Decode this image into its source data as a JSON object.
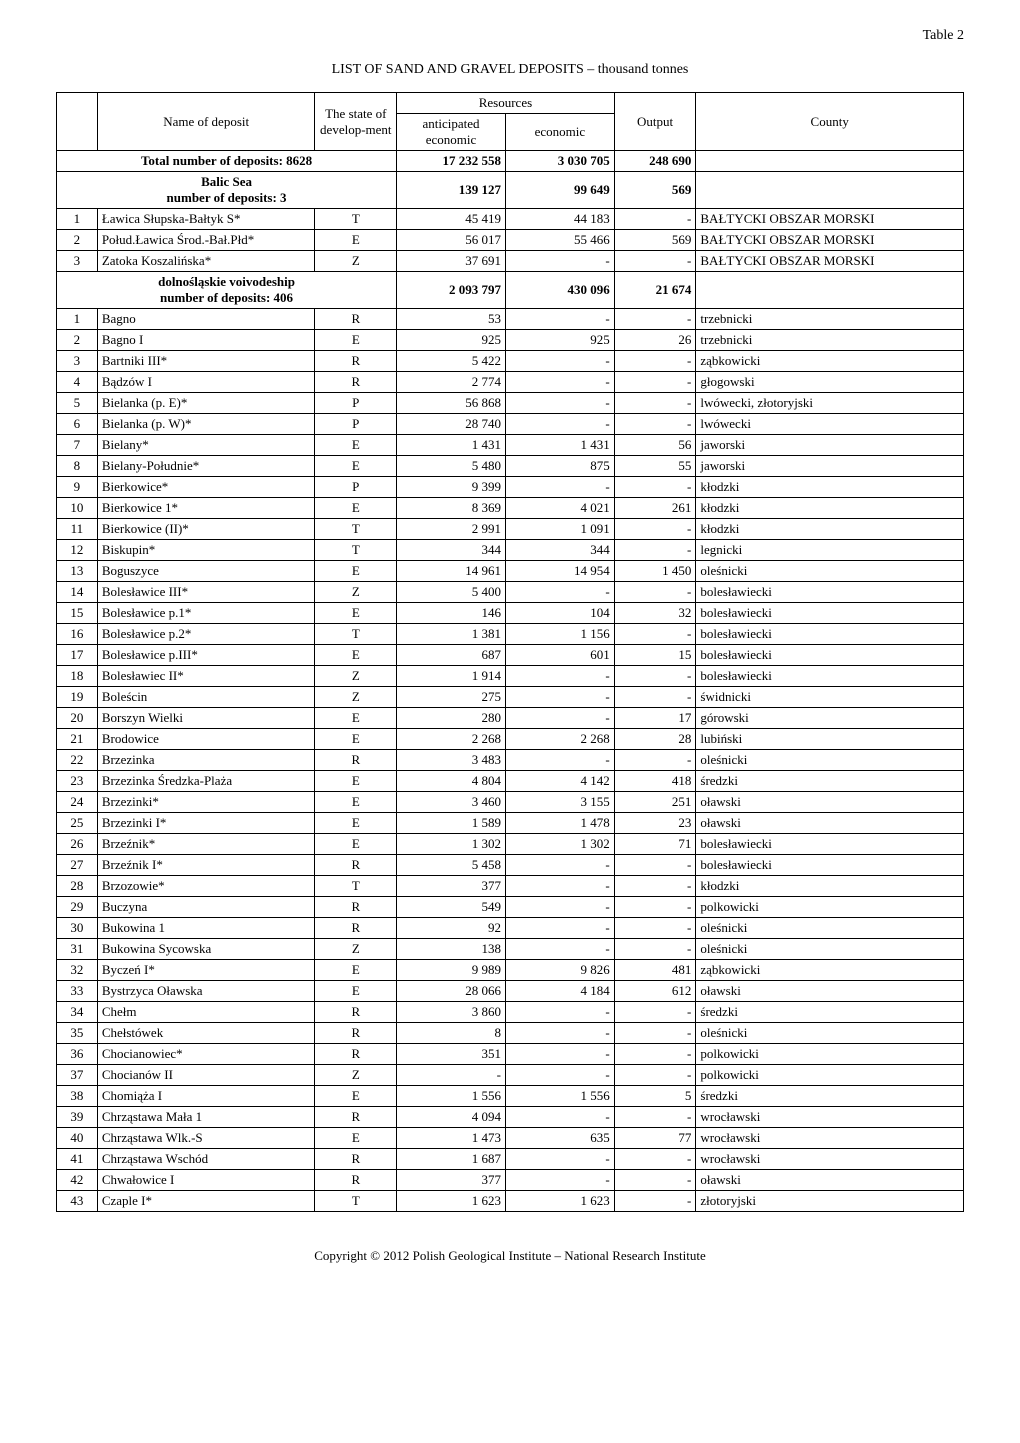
{
  "page": {
    "table_label": "Table 2",
    "title": "LIST OF SAND AND GRAVEL DEPOSITS – thousand tonnes",
    "footer": "Copyright © 2012 Polish Geological Institute – National Research Institute"
  },
  "header": {
    "name": "Name of deposit",
    "state": "The state of develop-ment",
    "resources": "Resources",
    "anticipated": "anticipated economic",
    "economic": "economic",
    "output": "Output",
    "county": "County"
  },
  "totals": {
    "label": "Total number of deposits: 8628",
    "anticipated": "17 232 558",
    "economic": "3 030 705",
    "output": "248 690"
  },
  "sections": [
    {
      "label": "Balic Sea\nnumber of deposits: 3",
      "anticipated": "139 127",
      "economic": "99 649",
      "output": "569",
      "rows": [
        {
          "n": "1",
          "name": "Ławica Słupska-Bałtyk S*",
          "state": "T",
          "antic": "45 419",
          "econ": "44 183",
          "out": "-",
          "county": "BAŁTYCKI OBSZAR MORSKI"
        },
        {
          "n": "2",
          "name": "Połud.Ławica Środ.-Bał.Płd*",
          "state": "E",
          "antic": "56 017",
          "econ": "55 466",
          "out": "569",
          "county": "BAŁTYCKI OBSZAR MORSKI"
        },
        {
          "n": "3",
          "name": "Zatoka Koszalińska*",
          "state": "Z",
          "antic": "37 691",
          "econ": "-",
          "out": "-",
          "county": "BAŁTYCKI OBSZAR MORSKI"
        }
      ]
    },
    {
      "label": "dolnośląskie voivodeship\nnumber of deposits: 406",
      "anticipated": "2 093 797",
      "economic": "430 096",
      "output": "21 674",
      "rows": [
        {
          "n": "1",
          "name": "Bagno",
          "state": "R",
          "antic": "53",
          "econ": "-",
          "out": "-",
          "county": "trzebnicki"
        },
        {
          "n": "2",
          "name": "Bagno I",
          "state": "E",
          "antic": "925",
          "econ": "925",
          "out": "26",
          "county": "trzebnicki"
        },
        {
          "n": "3",
          "name": "Bartniki III*",
          "state": "R",
          "antic": "5 422",
          "econ": "-",
          "out": "-",
          "county": "ząbkowicki"
        },
        {
          "n": "4",
          "name": "Bądzów I",
          "state": "R",
          "antic": "2 774",
          "econ": "-",
          "out": "-",
          "county": "głogowski"
        },
        {
          "n": "5",
          "name": "Bielanka (p. E)*",
          "state": "P",
          "antic": "56 868",
          "econ": "-",
          "out": "-",
          "county": "lwówecki, złotoryjski"
        },
        {
          "n": "6",
          "name": "Bielanka (p. W)*",
          "state": "P",
          "antic": "28 740",
          "econ": "-",
          "out": "-",
          "county": "lwówecki"
        },
        {
          "n": "7",
          "name": "Bielany*",
          "state": "E",
          "antic": "1 431",
          "econ": "1 431",
          "out": "56",
          "county": "jaworski"
        },
        {
          "n": "8",
          "name": "Bielany-Południe*",
          "state": "E",
          "antic": "5 480",
          "econ": "875",
          "out": "55",
          "county": "jaworski"
        },
        {
          "n": "9",
          "name": "Bierkowice*",
          "state": "P",
          "antic": "9 399",
          "econ": "-",
          "out": "-",
          "county": "kłodzki"
        },
        {
          "n": "10",
          "name": "Bierkowice 1*",
          "state": "E",
          "antic": "8 369",
          "econ": "4 021",
          "out": "261",
          "county": "kłodzki"
        },
        {
          "n": "11",
          "name": "Bierkowice (II)*",
          "state": "T",
          "antic": "2 991",
          "econ": "1 091",
          "out": "-",
          "county": "kłodzki"
        },
        {
          "n": "12",
          "name": "Biskupin*",
          "state": "T",
          "antic": "344",
          "econ": "344",
          "out": "-",
          "county": "legnicki"
        },
        {
          "n": "13",
          "name": "Boguszyce",
          "state": "E",
          "antic": "14 961",
          "econ": "14 954",
          "out": "1 450",
          "county": "oleśnicki"
        },
        {
          "n": "14",
          "name": "Bolesławice III*",
          "state": "Z",
          "antic": "5 400",
          "econ": "-",
          "out": "-",
          "county": "bolesławiecki"
        },
        {
          "n": "15",
          "name": "Bolesławice p.1*",
          "state": "E",
          "antic": "146",
          "econ": "104",
          "out": "32",
          "county": "bolesławiecki"
        },
        {
          "n": "16",
          "name": "Bolesławice p.2*",
          "state": "T",
          "antic": "1 381",
          "econ": "1 156",
          "out": "-",
          "county": "bolesławiecki"
        },
        {
          "n": "17",
          "name": "Bolesławice p.III*",
          "state": "E",
          "antic": "687",
          "econ": "601",
          "out": "15",
          "county": "bolesławiecki"
        },
        {
          "n": "18",
          "name": "Bolesławiec II*",
          "state": "Z",
          "antic": "1 914",
          "econ": "-",
          "out": "-",
          "county": "bolesławiecki"
        },
        {
          "n": "19",
          "name": "Boleścin",
          "state": "Z",
          "antic": "275",
          "econ": "-",
          "out": "-",
          "county": "świdnicki"
        },
        {
          "n": "20",
          "name": "Borszyn Wielki",
          "state": "E",
          "antic": "280",
          "econ": "-",
          "out": "17",
          "county": "górowski"
        },
        {
          "n": "21",
          "name": "Brodowice",
          "state": "E",
          "antic": "2 268",
          "econ": "2 268",
          "out": "28",
          "county": "lubiński"
        },
        {
          "n": "22",
          "name": "Brzezinka",
          "state": "R",
          "antic": "3 483",
          "econ": "-",
          "out": "-",
          "county": "oleśnicki"
        },
        {
          "n": "23",
          "name": "Brzezinka Średzka-Plaża",
          "state": "E",
          "antic": "4 804",
          "econ": "4 142",
          "out": "418",
          "county": "średzki"
        },
        {
          "n": "24",
          "name": "Brzezinki*",
          "state": "E",
          "antic": "3 460",
          "econ": "3 155",
          "out": "251",
          "county": "oławski"
        },
        {
          "n": "25",
          "name": "Brzezinki I*",
          "state": "E",
          "antic": "1 589",
          "econ": "1 478",
          "out": "23",
          "county": "oławski"
        },
        {
          "n": "26",
          "name": "Brzeźnik*",
          "state": "E",
          "antic": "1 302",
          "econ": "1 302",
          "out": "71",
          "county": "bolesławiecki"
        },
        {
          "n": "27",
          "name": "Brzeźnik I*",
          "state": "R",
          "antic": "5 458",
          "econ": "-",
          "out": "-",
          "county": "bolesławiecki"
        },
        {
          "n": "28",
          "name": "Brzozowie*",
          "state": "T",
          "antic": "377",
          "econ": "-",
          "out": "-",
          "county": "kłodzki"
        },
        {
          "n": "29",
          "name": "Buczyna",
          "state": "R",
          "antic": "549",
          "econ": "-",
          "out": "-",
          "county": "polkowicki"
        },
        {
          "n": "30",
          "name": "Bukowina 1",
          "state": "R",
          "antic": "92",
          "econ": "-",
          "out": "-",
          "county": "oleśnicki"
        },
        {
          "n": "31",
          "name": "Bukowina Sycowska",
          "state": "Z",
          "antic": "138",
          "econ": "-",
          "out": "-",
          "county": "oleśnicki"
        },
        {
          "n": "32",
          "name": "Byczeń I*",
          "state": "E",
          "antic": "9 989",
          "econ": "9 826",
          "out": "481",
          "county": "ząbkowicki"
        },
        {
          "n": "33",
          "name": "Bystrzyca Oławska",
          "state": "E",
          "antic": "28 066",
          "econ": "4 184",
          "out": "612",
          "county": "oławski"
        },
        {
          "n": "34",
          "name": "Chełm",
          "state": "R",
          "antic": "3 860",
          "econ": "-",
          "out": "-",
          "county": "średzki"
        },
        {
          "n": "35",
          "name": "Chełstówek",
          "state": "R",
          "antic": "8",
          "econ": "-",
          "out": "-",
          "county": "oleśnicki"
        },
        {
          "n": "36",
          "name": "Chocianowiec*",
          "state": "R",
          "antic": "351",
          "econ": "-",
          "out": "-",
          "county": "polkowicki"
        },
        {
          "n": "37",
          "name": "Chocianów II",
          "state": "Z",
          "antic": "-",
          "econ": "-",
          "out": "-",
          "county": "polkowicki"
        },
        {
          "n": "38",
          "name": "Chomiąża I",
          "state": "E",
          "antic": "1 556",
          "econ": "1 556",
          "out": "5",
          "county": "średzki"
        },
        {
          "n": "39",
          "name": "Chrząstawa Mała 1",
          "state": "R",
          "antic": "4 094",
          "econ": "-",
          "out": "-",
          "county": "wrocławski"
        },
        {
          "n": "40",
          "name": "Chrząstawa Wlk.-S",
          "state": "E",
          "antic": "1 473",
          "econ": "635",
          "out": "77",
          "county": "wrocławski"
        },
        {
          "n": "41",
          "name": "Chrząstawa Wschód",
          "state": "R",
          "antic": "1 687",
          "econ": "-",
          "out": "-",
          "county": "wrocławski"
        },
        {
          "n": "42",
          "name": "Chwałowice I",
          "state": "R",
          "antic": "377",
          "econ": "-",
          "out": "-",
          "county": "oławski"
        },
        {
          "n": "43",
          "name": "Czaple I*",
          "state": "T",
          "antic": "1 623",
          "econ": "1 623",
          "out": "-",
          "county": "złotoryjski"
        }
      ]
    }
  ]
}
